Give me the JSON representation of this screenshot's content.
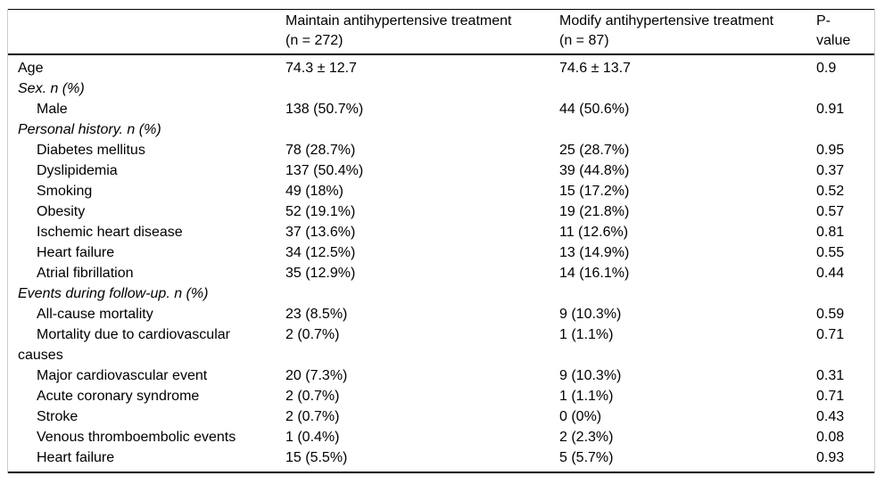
{
  "table": {
    "columns": {
      "maintain": {
        "line1": "Maintain antihypertensive treatment",
        "line2": "(n = 272)"
      },
      "modify": {
        "line1": "Modify antihypertensive treatment",
        "line2": "(n = 87)"
      },
      "pvalue": {
        "line1": "P-",
        "line2": "value"
      }
    },
    "rows": [
      {
        "type": "top",
        "label": "Age",
        "maintain": "74.3 ± 12.7",
        "modify": "74.6 ± 13.7",
        "p": "0.9"
      },
      {
        "type": "group",
        "label": "Sex. n (%)"
      },
      {
        "type": "item",
        "label": "Male",
        "maintain": "138 (50.7%)",
        "modify": "44 (50.6%)",
        "p": "0.91"
      },
      {
        "type": "group",
        "label": "Personal history. n (%)"
      },
      {
        "type": "item",
        "label": "Diabetes mellitus",
        "maintain": "78 (28.7%)",
        "modify": "25 (28.7%)",
        "p": "0.95"
      },
      {
        "type": "item",
        "label": "Dyslipidemia",
        "maintain": "137 (50.4%)",
        "modify": "39 (44.8%)",
        "p": "0.37"
      },
      {
        "type": "item",
        "label": "Smoking",
        "maintain": "49 (18%)",
        "modify": "15 (17.2%)",
        "p": "0.52"
      },
      {
        "type": "item",
        "label": "Obesity",
        "maintain": "52 (19.1%)",
        "modify": "19 (21.8%)",
        "p": "0.57"
      },
      {
        "type": "item",
        "label": "Ischemic heart disease",
        "maintain": "37 (13.6%)",
        "modify": "11 (12.6%)",
        "p": "0.81"
      },
      {
        "type": "item",
        "label": "Heart failure",
        "maintain": "34 (12.5%)",
        "modify": "13 (14.9%)",
        "p": "0.55"
      },
      {
        "type": "item",
        "label": "Atrial fibrillation",
        "maintain": "35 (12.9%)",
        "modify": "14 (16.1%)",
        "p": "0.44"
      },
      {
        "type": "group",
        "label": "Events during follow-up. n (%)"
      },
      {
        "type": "item",
        "label": "All-cause mortality",
        "maintain": "23 (8.5%)",
        "modify": "9 (10.3%)",
        "p": "0.59"
      },
      {
        "type": "item",
        "label": "Mortality due to cardiovascular causes",
        "maintain": "2 (0.7%)",
        "modify": "1 (1.1%)",
        "p": "0.71"
      },
      {
        "type": "item",
        "label": "Major cardiovascular event",
        "maintain": "20 (7.3%)",
        "modify": "9 (10.3%)",
        "p": "0.31"
      },
      {
        "type": "item",
        "label": "Acute coronary syndrome",
        "maintain": "2 (0.7%)",
        "modify": "1 (1.1%)",
        "p": "0.71"
      },
      {
        "type": "item",
        "label": "Stroke",
        "maintain": "2 (0.7%)",
        "modify": "0 (0%)",
        "p": "0.43"
      },
      {
        "type": "item",
        "label": "Venous thromboembolic events",
        "maintain": "1 (0.4%)",
        "modify": "2 (2.3%)",
        "p": "0.08"
      },
      {
        "type": "item",
        "label": "Heart failure",
        "maintain": "15 (5.5%)",
        "modify": "5 (5.7%)",
        "p": "0.93"
      }
    ]
  }
}
